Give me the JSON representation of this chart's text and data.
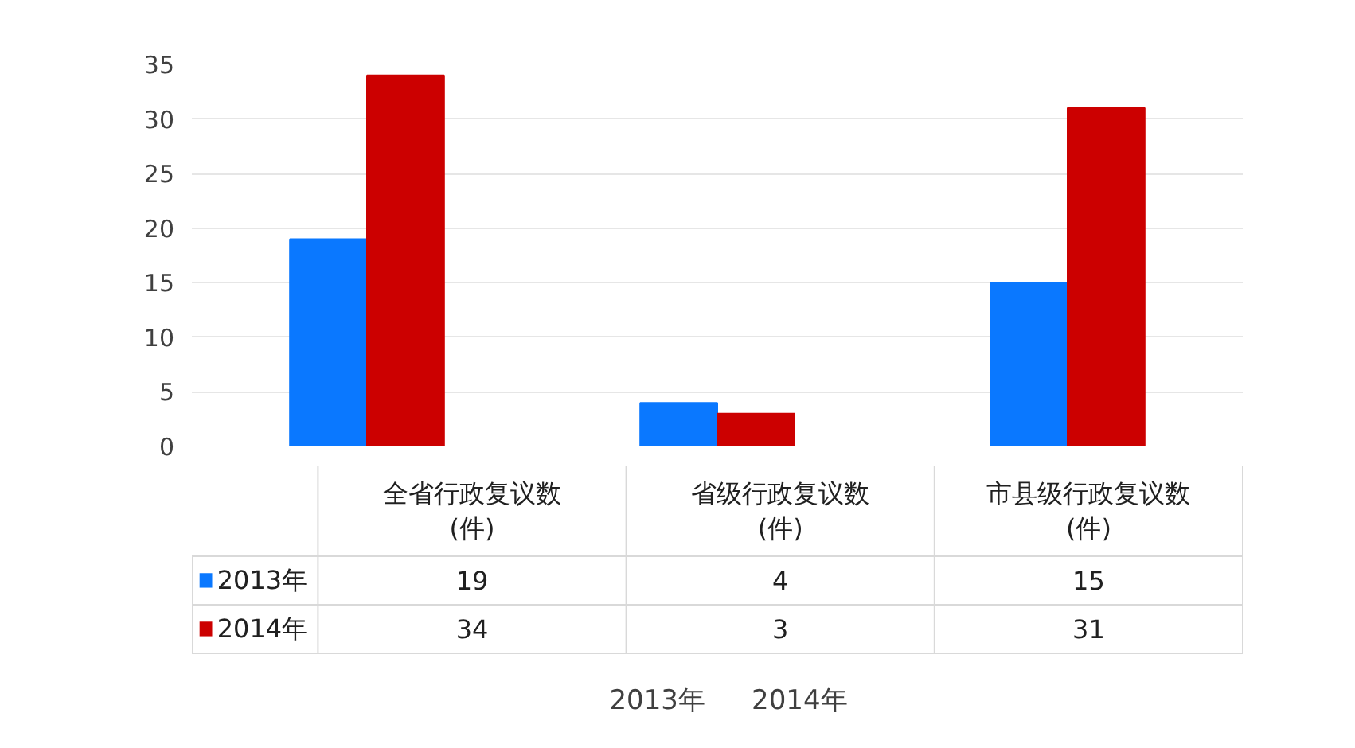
{
  "chart_data": {
    "type": "bar",
    "categories": [
      "全省行政复议数\n(件)",
      "省级行政复议数\n(件)",
      "市县级行政复议数\n(件)"
    ],
    "series": [
      {
        "name": "2013年",
        "color": "#0a78ff",
        "values": [
          19,
          4,
          15
        ]
      },
      {
        "name": "2014年",
        "color": "#cc0000",
        "values": [
          34,
          3,
          31
        ]
      }
    ],
    "ylim": [
      0,
      35
    ],
    "yticks": [
      0,
      5,
      10,
      15,
      20,
      25,
      30,
      35
    ],
    "grid": "y",
    "legend": "bottom",
    "data_labels": true
  }
}
